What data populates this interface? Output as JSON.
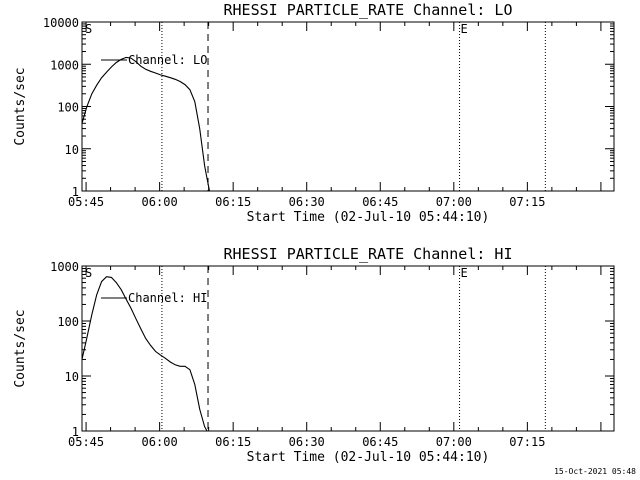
{
  "chart_data": [
    {
      "type": "line",
      "title": "RHESSI PARTICLE_RATE Channel: LO",
      "ylabel": "Counts/sec",
      "xlabel": "Start Time (02-Jul-10 05:44:10)",
      "yscale": "log",
      "ylim": [
        1,
        10000
      ],
      "ytick_labels": [
        "10000",
        "1000",
        "100",
        "10",
        "1"
      ],
      "ytick_values": [
        10000,
        1000,
        100,
        10,
        1
      ],
      "xlim_min": [
        0,
        108.5
      ],
      "xtick_labels": [
        "05:45",
        "06:00",
        "06:15",
        "06:30",
        "06:45",
        "07:00",
        "07:15"
      ],
      "xtick_min": [
        0.83,
        15.83,
        30.83,
        45.83,
        60.83,
        75.83,
        90.83
      ],
      "legend": "Channel: LO",
      "markers": [
        {
          "label": "S",
          "t": 0.4,
          "style": "none"
        },
        {
          "label": "",
          "t": 16.3,
          "style": "dotted"
        },
        {
          "label": "",
          "t": 25.7,
          "style": "dashed"
        },
        {
          "label": "E",
          "t": 77.0,
          "style": "dotted"
        },
        {
          "label": "",
          "t": 94.5,
          "style": "dotted"
        }
      ],
      "series": [
        {
          "name": "Channel: LO",
          "x": [
            0,
            1,
            2,
            3,
            4,
            5,
            6,
            7,
            8,
            9,
            10,
            11,
            12,
            13,
            14,
            15,
            16,
            17,
            18,
            19,
            20,
            21,
            22,
            23,
            24,
            25,
            25.5,
            26
          ],
          "y": [
            40,
            100,
            200,
            320,
            480,
            650,
            860,
            1100,
            1300,
            1450,
            1400,
            1150,
            900,
            760,
            680,
            620,
            560,
            520,
            480,
            440,
            390,
            330,
            250,
            130,
            30,
            4,
            2,
            1
          ]
        }
      ]
    },
    {
      "type": "line",
      "title": "RHESSI PARTICLE_RATE Channel: HI",
      "ylabel": "Counts/sec",
      "xlabel": "Start Time (02-Jul-10 05:44:10)",
      "yscale": "log",
      "ylim": [
        1,
        1000
      ],
      "ytick_labels": [
        "1000",
        "100",
        "10",
        "1"
      ],
      "ytick_values": [
        1000,
        100,
        10,
        1
      ],
      "xlim_min": [
        0,
        108.5
      ],
      "xtick_labels": [
        "05:45",
        "06:00",
        "06:15",
        "06:30",
        "06:45",
        "07:00",
        "07:15"
      ],
      "xtick_min": [
        0.83,
        15.83,
        30.83,
        45.83,
        60.83,
        75.83,
        90.83
      ],
      "legend": "Channel: HI",
      "markers": [
        {
          "label": "S",
          "t": 0.4,
          "style": "none"
        },
        {
          "label": "",
          "t": 16.3,
          "style": "dotted"
        },
        {
          "label": "",
          "t": 25.7,
          "style": "dashed"
        },
        {
          "label": "E",
          "t": 77.0,
          "style": "dotted"
        },
        {
          "label": "",
          "t": 94.5,
          "style": "dotted"
        }
      ],
      "series": [
        {
          "name": "Channel: HI",
          "x": [
            0,
            1,
            2,
            3,
            4,
            5,
            6,
            7,
            8,
            9,
            10,
            11,
            12,
            13,
            14,
            15,
            16,
            17,
            18,
            19,
            20,
            21,
            22,
            23,
            24,
            25,
            25.5
          ],
          "y": [
            20,
            50,
            130,
            300,
            520,
            640,
            620,
            500,
            370,
            250,
            170,
            110,
            72,
            48,
            36,
            28,
            24,
            21,
            18,
            16,
            15,
            15,
            13,
            7,
            2.5,
            1.2,
            1
          ]
        }
      ]
    }
  ],
  "footer": {
    "timestamp": "15-Oct-2021 05:48"
  }
}
